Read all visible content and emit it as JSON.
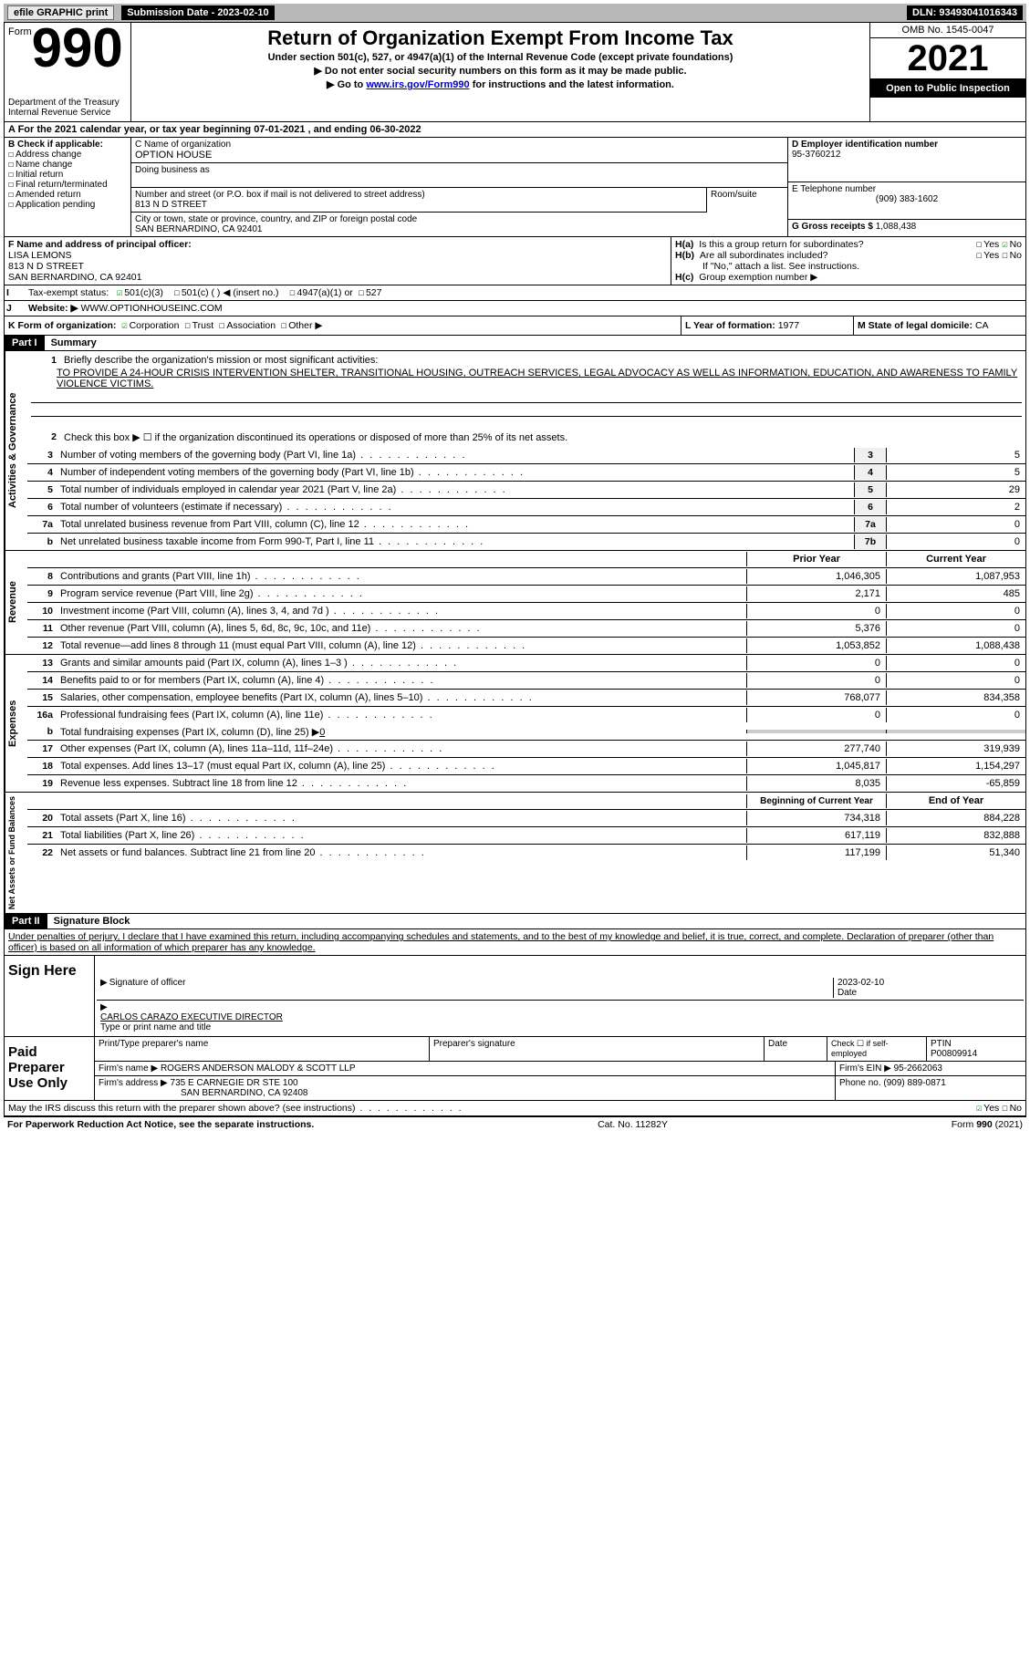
{
  "top": {
    "efile": "efile GRAPHIC print",
    "submission": "Submission Date - 2023-02-10",
    "dln": "DLN: 93493041016343"
  },
  "header": {
    "form_label": "Form",
    "form_num": "990",
    "title": "Return of Organization Exempt From Income Tax",
    "sub1": "Under section 501(c), 527, or 4947(a)(1) of the Internal Revenue Code (except private foundations)",
    "sub2": "▶ Do not enter social security numbers on this form as it may be made public.",
    "sub3_pre": "▶ Go to ",
    "sub3_link": "www.irs.gov/Form990",
    "sub3_post": " for instructions and the latest information.",
    "dept": "Department of the Treasury Internal Revenue Service",
    "omb": "OMB No. 1545-0047",
    "year": "2021",
    "open": "Open to Public Inspection"
  },
  "rowA": "A For the 2021 calendar year, or tax year beginning 07-01-2021    , and ending 06-30-2022",
  "B": {
    "label": "B Check if applicable:",
    "addr": "Address change",
    "name": "Name change",
    "init": "Initial return",
    "final": "Final return/terminated",
    "amend": "Amended return",
    "app": "Application pending"
  },
  "C": {
    "name_label": "C Name of organization",
    "name": "OPTION HOUSE",
    "dba": "Doing business as",
    "street_label": "Number and street (or P.O. box if mail is not delivered to street address)",
    "room_label": "Room/suite",
    "street": "813 N D STREET",
    "city_label": "City or town, state or province, country, and ZIP or foreign postal code",
    "city": "SAN BERNARDINO, CA  92401"
  },
  "D": {
    "label": "D Employer identification number",
    "val": "95-3760212"
  },
  "E": {
    "label": "E Telephone number",
    "val": "(909) 383-1602"
  },
  "G": {
    "label": "G Gross receipts $",
    "val": "1,088,438"
  },
  "F": {
    "label": "F Name and address of principal officer:",
    "name": "LISA LEMONS",
    "street": "813 N D STREET",
    "city": "SAN BERNARDINO, CA  92401"
  },
  "H": {
    "a": "Is this a group return for subordinates?",
    "yes": "Yes",
    "no": "No",
    "b": "Are all subordinates included?",
    "b_note": "If \"No,\" attach a list. See instructions.",
    "c": "Group exemption number ▶",
    "ha": "H(a)",
    "hb": "H(b)",
    "hc": "H(c)"
  },
  "I": {
    "label": "Tax-exempt status:",
    "c3": "501(c)(3)",
    "c": "501(c) (  ) ◀ (insert no.)",
    "a1": "4947(a)(1) or",
    "s527": "527",
    "i": "I"
  },
  "J": {
    "label": "Website: ▶",
    "val": "WWW.OPTIONHOUSEINC.COM",
    "j": "J"
  },
  "K": {
    "label": "K Form of organization:",
    "corp": "Corporation",
    "trust": "Trust",
    "assoc": "Association",
    "other": "Other ▶"
  },
  "L": {
    "label": "L Year of formation:",
    "val": "1977"
  },
  "M": {
    "label": "M State of legal domicile:",
    "val": "CA"
  },
  "part1": {
    "label": "Part I",
    "title": "Summary"
  },
  "summary": {
    "q1": "Briefly describe the organization's mission or most significant activities:",
    "mission": "TO PROVIDE A 24-HOUR CRISIS INTERVENTION SHELTER, TRANSITIONAL HOUSING, OUTREACH SERVICES, LEGAL ADVOCACY AS WELL AS INFORMATION, EDUCATION, AND AWARENESS TO FAMILY VIOLENCE VICTIMS.",
    "q2": "Check this box ▶ ☐  if the organization discontinued its operations or disposed of more than 25% of its net assets.",
    "rows": [
      {
        "n": "3",
        "d": "Number of voting members of the governing body (Part VI, line 1a)",
        "b": "3",
        "v": "5"
      },
      {
        "n": "4",
        "d": "Number of independent voting members of the governing body (Part VI, line 1b)",
        "b": "4",
        "v": "5"
      },
      {
        "n": "5",
        "d": "Total number of individuals employed in calendar year 2021 (Part V, line 2a)",
        "b": "5",
        "v": "29"
      },
      {
        "n": "6",
        "d": "Total number of volunteers (estimate if necessary)",
        "b": "6",
        "v": "2"
      },
      {
        "n": "7a",
        "d": "Total unrelated business revenue from Part VIII, column (C), line 12",
        "b": "7a",
        "v": "0"
      },
      {
        "n": "b",
        "d": "Net unrelated business taxable income from Form 990-T, Part I, line 11",
        "b": "7b",
        "v": "0"
      }
    ],
    "prior": "Prior Year",
    "current": "Current Year",
    "revenue_label": "Revenue",
    "revenue": [
      {
        "n": "8",
        "d": "Contributions and grants (Part VIII, line 1h)",
        "p": "1,046,305",
        "c": "1,087,953"
      },
      {
        "n": "9",
        "d": "Program service revenue (Part VIII, line 2g)",
        "p": "2,171",
        "c": "485"
      },
      {
        "n": "10",
        "d": "Investment income (Part VIII, column (A), lines 3, 4, and 7d )",
        "p": "0",
        "c": "0"
      },
      {
        "n": "11",
        "d": "Other revenue (Part VIII, column (A), lines 5, 6d, 8c, 9c, 10c, and 11e)",
        "p": "5,376",
        "c": "0"
      },
      {
        "n": "12",
        "d": "Total revenue—add lines 8 through 11 (must equal Part VIII, column (A), line 12)",
        "p": "1,053,852",
        "c": "1,088,438"
      }
    ],
    "expenses_label": "Expenses",
    "expenses": [
      {
        "n": "13",
        "d": "Grants and similar amounts paid (Part IX, column (A), lines 1–3 )",
        "p": "0",
        "c": "0"
      },
      {
        "n": "14",
        "d": "Benefits paid to or for members (Part IX, column (A), line 4)",
        "p": "0",
        "c": "0"
      },
      {
        "n": "15",
        "d": "Salaries, other compensation, employee benefits (Part IX, column (A), lines 5–10)",
        "p": "768,077",
        "c": "834,358"
      },
      {
        "n": "16a",
        "d": "Professional fundraising fees (Part IX, column (A), line 11e)",
        "p": "0",
        "c": "0"
      }
    ],
    "b16": "Total fundraising expenses (Part IX, column (D), line 25) ▶",
    "b16v": "0",
    "expenses2": [
      {
        "n": "17",
        "d": "Other expenses (Part IX, column (A), lines 11a–11d, 11f–24e)",
        "p": "277,740",
        "c": "319,939"
      },
      {
        "n": "18",
        "d": "Total expenses. Add lines 13–17 (must equal Part IX, column (A), line 25)",
        "p": "1,045,817",
        "c": "1,154,297"
      },
      {
        "n": "19",
        "d": "Revenue less expenses. Subtract line 18 from line 12",
        "p": "8,035",
        "c": "-65,859"
      }
    ],
    "net_label": "Net Assets or Fund Balances",
    "begin": "Beginning of Current Year",
    "end": "End of Year",
    "net": [
      {
        "n": "20",
        "d": "Total assets (Part X, line 16)",
        "p": "734,318",
        "c": "884,228"
      },
      {
        "n": "21",
        "d": "Total liabilities (Part X, line 26)",
        "p": "617,119",
        "c": "832,888"
      },
      {
        "n": "22",
        "d": "Net assets or fund balances. Subtract line 21 from line 20",
        "p": "117,199",
        "c": "51,340"
      }
    ],
    "gov_label": "Activities & Governance"
  },
  "part2": {
    "label": "Part II",
    "title": "Signature Block",
    "penalties": "Under penalties of perjury, I declare that I have examined this return, including accompanying schedules and statements, and to the best of my knowledge and belief, it is true, correct, and complete. Declaration of preparer (other than officer) is based on all information of which preparer has any knowledge."
  },
  "sign": {
    "here": "Sign Here",
    "sig_officer": "Signature of officer",
    "date": "Date",
    "date_val": "2023-02-10",
    "name": "CARLOS CARAZO  EXECUTIVE DIRECTOR",
    "type": "Type or print name and title"
  },
  "paid": {
    "label": "Paid Preparer Use Only",
    "print": "Print/Type preparer's name",
    "sig": "Preparer's signature",
    "pdate": "Date",
    "check": "Check ☐ if self-employed",
    "ptin_l": "PTIN",
    "ptin": "P00809914",
    "firm_l": "Firm's name    ▶",
    "firm": "ROGERS ANDERSON MALODY & SCOTT LLP",
    "ein_l": "Firm's EIN ▶",
    "ein": "95-2662063",
    "addr_l": "Firm's address ▶",
    "addr1": "735 E CARNEGIE DR STE 100",
    "addr2": "SAN BERNARDINO, CA  92408",
    "phone_l": "Phone no.",
    "phone": "(909) 889-0871"
  },
  "footer": {
    "discuss": "May the IRS discuss this return with the preparer shown above? (see instructions)",
    "paperwork": "For Paperwork Reduction Act Notice, see the separate instructions.",
    "cat": "Cat. No. 11282Y",
    "form": "Form 990 (2021)"
  }
}
